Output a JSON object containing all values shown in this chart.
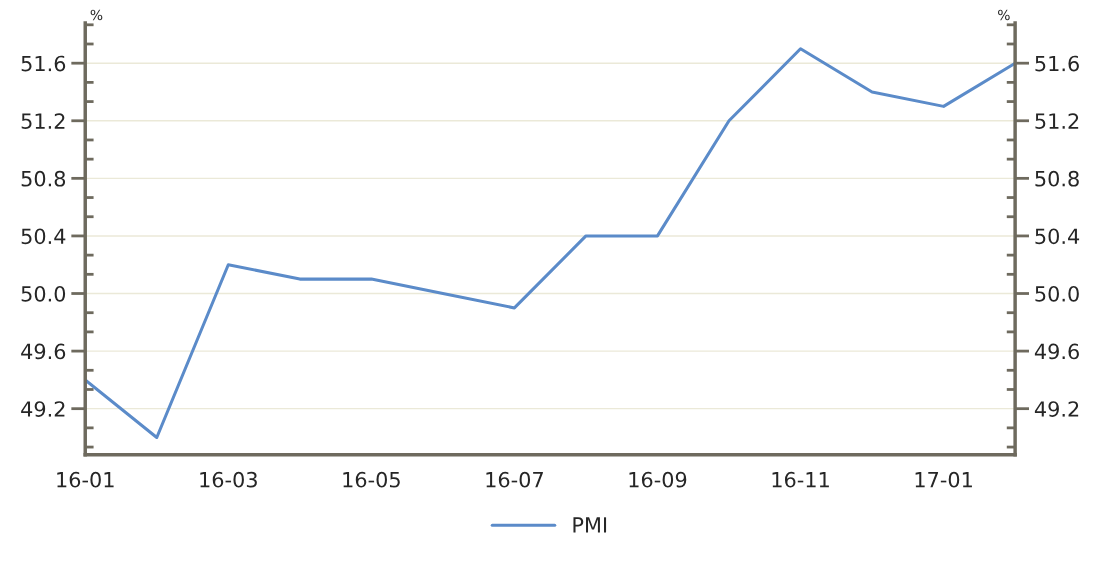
{
  "chart_data": {
    "type": "line",
    "categories": [
      "16-01",
      null,
      "16-03",
      null,
      "16-05",
      null,
      "16-07",
      null,
      "16-09",
      null,
      "16-11",
      null,
      "17-01",
      null
    ],
    "series": [
      {
        "name": "PMI",
        "color": "#5b8bc9",
        "values": [
          49.4,
          49.0,
          50.2,
          50.1,
          50.1,
          50.0,
          49.9,
          50.4,
          50.4,
          51.2,
          51.7,
          51.4,
          51.3,
          51.6
        ]
      }
    ],
    "ylabel": "%",
    "y2label": "%",
    "ylim": [
      48.88,
      51.88
    ],
    "yticks": [
      {
        "value": 49.2,
        "label": "49.2"
      },
      {
        "value": 49.6,
        "label": "49.6"
      },
      {
        "value": 50.0,
        "label": "50.0"
      },
      {
        "value": 50.4,
        "label": "50.4"
      },
      {
        "value": 50.8,
        "label": "50.8"
      },
      {
        "value": 51.2,
        "label": "51.2"
      },
      {
        "value": 51.6,
        "label": "51.6"
      }
    ],
    "y2lim": [
      48.88,
      51.88
    ],
    "y2ticks": [
      {
        "value": 49.2,
        "label": "49.2"
      },
      {
        "value": 49.6,
        "label": "49.6"
      },
      {
        "value": 50.0,
        "label": "50.0"
      },
      {
        "value": 50.4,
        "label": "50.4"
      },
      {
        "value": 50.8,
        "label": "50.8"
      },
      {
        "value": 51.2,
        "label": "51.2"
      },
      {
        "value": 51.6,
        "label": "51.6"
      }
    ],
    "grid": "y",
    "legend": "bottom",
    "marker": "none",
    "line_style": "solid"
  }
}
